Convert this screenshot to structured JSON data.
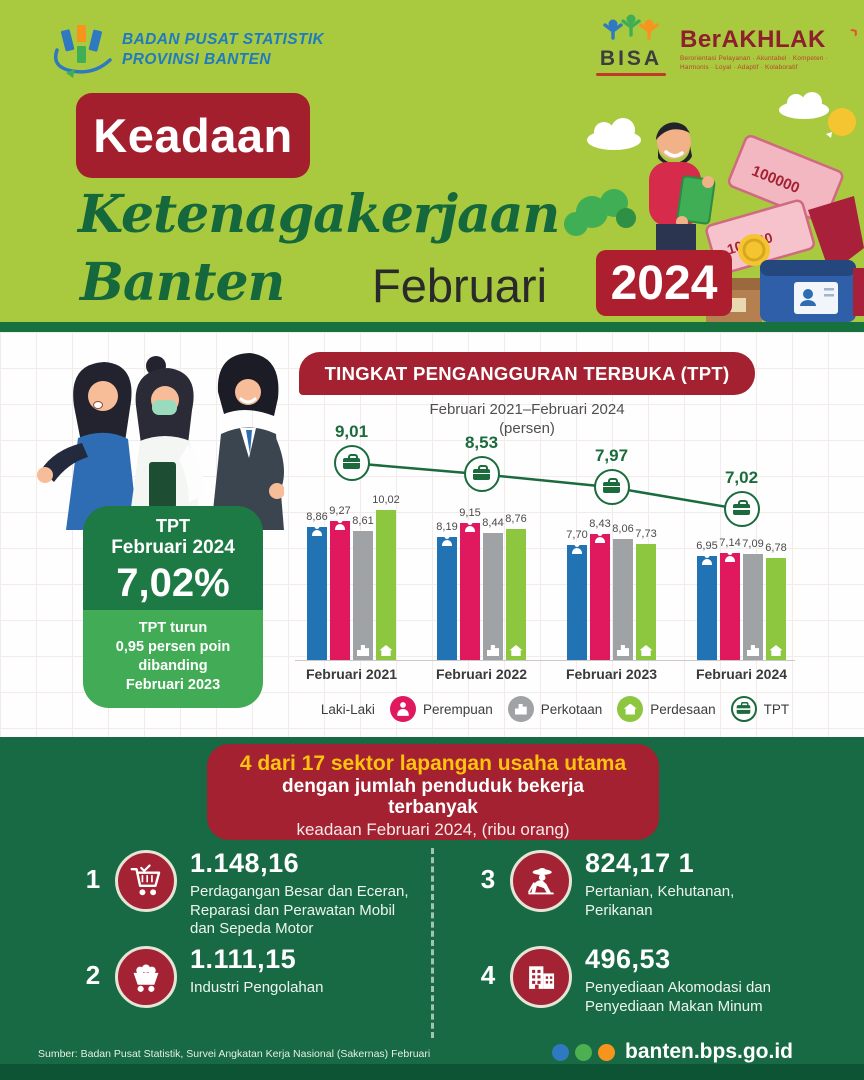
{
  "header": {
    "bps_line1": "BADAN PUSAT STATISTIK",
    "bps_line2": "PROVINSI BANTEN",
    "bisa_label": "BISA",
    "berakhlak_label": "BerAKHLAK",
    "berakhlak_tagline": "Berorientasi Pelayanan · Akuntabel · Kompeten · Harmonis · Loyal · Adaptif · Kolaboratif",
    "title_word1": "Keadaan",
    "title_word2": "Ketenagakerjaan",
    "title_word3": "Banten",
    "period_label": "Februari",
    "period_year": "2024"
  },
  "tpt_box": {
    "line1": "TPT",
    "line2": "Februari 2024",
    "value": "7,02%",
    "note1": "TPT turun",
    "note2": "0,95 persen poin",
    "note3": "dibanding",
    "note4": "Februari 2023"
  },
  "chart_data": {
    "type": "bar",
    "title": "TINGKAT PENGANGGURAN TERBUKA (TPT)",
    "subtitle": "Februari 2021–Februari 2024",
    "unit": "(persen)",
    "grid": true,
    "legend_position": "bottom",
    "ylim": [
      0,
      12
    ],
    "categories": [
      "Februari 2021",
      "Februari 2022",
      "Februari 2023",
      "Februari 2024"
    ],
    "series": [
      {
        "name": "Laki-Laki",
        "slug": "laki-laki",
        "glyph": "g-person",
        "color": "#2273b4",
        "values": [
          8.86,
          8.19,
          7.7,
          6.95
        ],
        "labels": [
          "8,86",
          "8,19",
          "7,70",
          "6,95"
        ]
      },
      {
        "name": "Perempuan",
        "slug": "perempuan",
        "glyph": "g-person",
        "color": "#e0195f",
        "values": [
          9.27,
          9.15,
          8.43,
          7.14
        ],
        "labels": [
          "9,27",
          "9,15",
          "8,43",
          "7,14"
        ]
      },
      {
        "name": "Perkotaan",
        "slug": "perkotaan",
        "glyph": "g-building",
        "color": "#a0a3a6",
        "values": [
          8.61,
          8.44,
          8.06,
          7.09
        ],
        "labels": [
          "8,61",
          "8,44",
          "8,06",
          "7,09"
        ]
      },
      {
        "name": "Perdesaan",
        "slug": "perdesaan",
        "glyph": "g-house",
        "color": "#8dc63f",
        "values": [
          10.02,
          8.76,
          7.73,
          6.78
        ],
        "labels": [
          "10,02",
          "8,76",
          "7,73",
          "6,78"
        ]
      }
    ],
    "line": {
      "name": "TPT",
      "color": "#1b6b3d",
      "values": [
        9.01,
        8.53,
        7.97,
        7.02
      ],
      "labels": [
        "9,01",
        "8,53",
        "7,97",
        "7,02"
      ]
    }
  },
  "sectors": {
    "header_line1": "4 dari 17 sektor lapangan usaha utama",
    "header_line2": "dengan jumlah penduduk bekerja",
    "header_line3": "terbanyak",
    "header_line4": "keadaan Februari 2024, (ribu orang)",
    "items": [
      {
        "rank": "1",
        "value": "1.148,16",
        "icon": "shopping-cart",
        "label": "Perdagangan Besar dan Eceran, Reparasi dan Perawatan Mobil dan Sepeda Motor"
      },
      {
        "rank": "2",
        "value": "1.111,15",
        "icon": "mine-cart",
        "label": "Industri Pengolahan"
      },
      {
        "rank": "3",
        "value": "824,17 1",
        "icon": "farmer",
        "label": "Pertanian, Kehutanan, Perikanan"
      },
      {
        "rank": "4",
        "value": "496,53",
        "icon": "hotel-building",
        "label": "Penyediaan Akomodasi dan Penyediaan Makan Minum"
      }
    ]
  },
  "footer": {
    "source": "Sumber: Badan Pusat Statistik, Survei Angkatan Kerja Nasional (Sakernas) Februari",
    "website": "banten.bps.go.id"
  },
  "colors": {
    "lime": "#a9c93f",
    "accent_red": "#a32130",
    "dark_green": "#176a44",
    "gold": "#ffc20e",
    "chart_blue": "#2273b4",
    "chart_pink": "#e0195f",
    "chart_gray": "#a0a3a6",
    "chart_green": "#8dc63f",
    "tpt_line_green": "#1b6b3d"
  }
}
